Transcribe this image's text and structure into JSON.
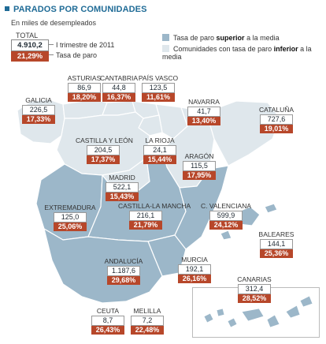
{
  "title": "PARADOS POR COMUNIDADES",
  "subtitle": "En miles de desempleados",
  "total": {
    "label": "TOTAL",
    "value": "4.910,2",
    "rate": "21,29%",
    "value_note": "I trimestre de 2011",
    "rate_note": "Tasa de paro"
  },
  "legend": {
    "above": {
      "pre": "Tasa de paro ",
      "bold": "superior",
      "post": " a la media",
      "color": "#9cb7c9"
    },
    "below": {
      "pre": "Comunidades con tasa de paro ",
      "bold": "inferior",
      "post": " a la media",
      "color": "#dfe7ec"
    }
  },
  "colors": {
    "rate_box": "#b7472a",
    "title": "#1f6b96",
    "borders": "#ffffff"
  },
  "regions": [
    {
      "id": "galicia",
      "name": "GALICIA",
      "value": "226,5",
      "rate": "17,33%",
      "above_average": false
    },
    {
      "id": "asturias",
      "name": "ASTURIAS",
      "value": "86,9",
      "rate": "18,20%",
      "above_average": false
    },
    {
      "id": "cantabria",
      "name": "CANTABRIA",
      "value": "44,8",
      "rate": "16,37%",
      "above_average": false
    },
    {
      "id": "pais-vasco",
      "name": "PAÍS VASCO",
      "value": "123,5",
      "rate": "11,61%",
      "above_average": false
    },
    {
      "id": "navarra",
      "name": "NAVARRA",
      "value": "41,7",
      "rate": "13,40%",
      "above_average": false
    },
    {
      "id": "cataluna",
      "name": "CATALUÑA",
      "value": "727,6",
      "rate": "19,01%",
      "above_average": false
    },
    {
      "id": "castilla-leon",
      "name": "CASTILLA Y LEÓN",
      "value": "204,5",
      "rate": "17,37%",
      "above_average": false
    },
    {
      "id": "la-rioja",
      "name": "LA RIOJA",
      "value": "24,1",
      "rate": "15,44%",
      "above_average": false
    },
    {
      "id": "aragon",
      "name": "ARAGÓN",
      "value": "115,5",
      "rate": "17,95%",
      "above_average": false
    },
    {
      "id": "madrid",
      "name": "MADRID",
      "value": "522,1",
      "rate": "15,43%",
      "above_average": false
    },
    {
      "id": "extremadura",
      "name": "EXTREMADURA",
      "value": "125,0",
      "rate": "25,06%",
      "above_average": true
    },
    {
      "id": "castilla-la-mancha",
      "name": "CASTILLA-LA MANCHA",
      "value": "216,1",
      "rate": "21,79%",
      "above_average": true
    },
    {
      "id": "c-valenciana",
      "name": "C. VALENCIANA",
      "value": "599,9",
      "rate": "24,12%",
      "above_average": true
    },
    {
      "id": "baleares",
      "name": "BALEARES",
      "value": "144,1",
      "rate": "25,36%",
      "above_average": true
    },
    {
      "id": "andalucia",
      "name": "ANDALUCÍA",
      "value": "1.187,6",
      "rate": "29,68%",
      "above_average": true
    },
    {
      "id": "murcia",
      "name": "MURCIA",
      "value": "192,1",
      "rate": "26,16%",
      "above_average": true
    },
    {
      "id": "canarias",
      "name": "CANARIAS",
      "value": "312,4",
      "rate": "28,52%",
      "above_average": true
    },
    {
      "id": "ceuta",
      "name": "CEUTA",
      "value": "8,7",
      "rate": "26,43%",
      "above_average": true
    },
    {
      "id": "melilla",
      "name": "MELILLA",
      "value": "7,2",
      "rate": "22,48%",
      "above_average": true
    }
  ]
}
